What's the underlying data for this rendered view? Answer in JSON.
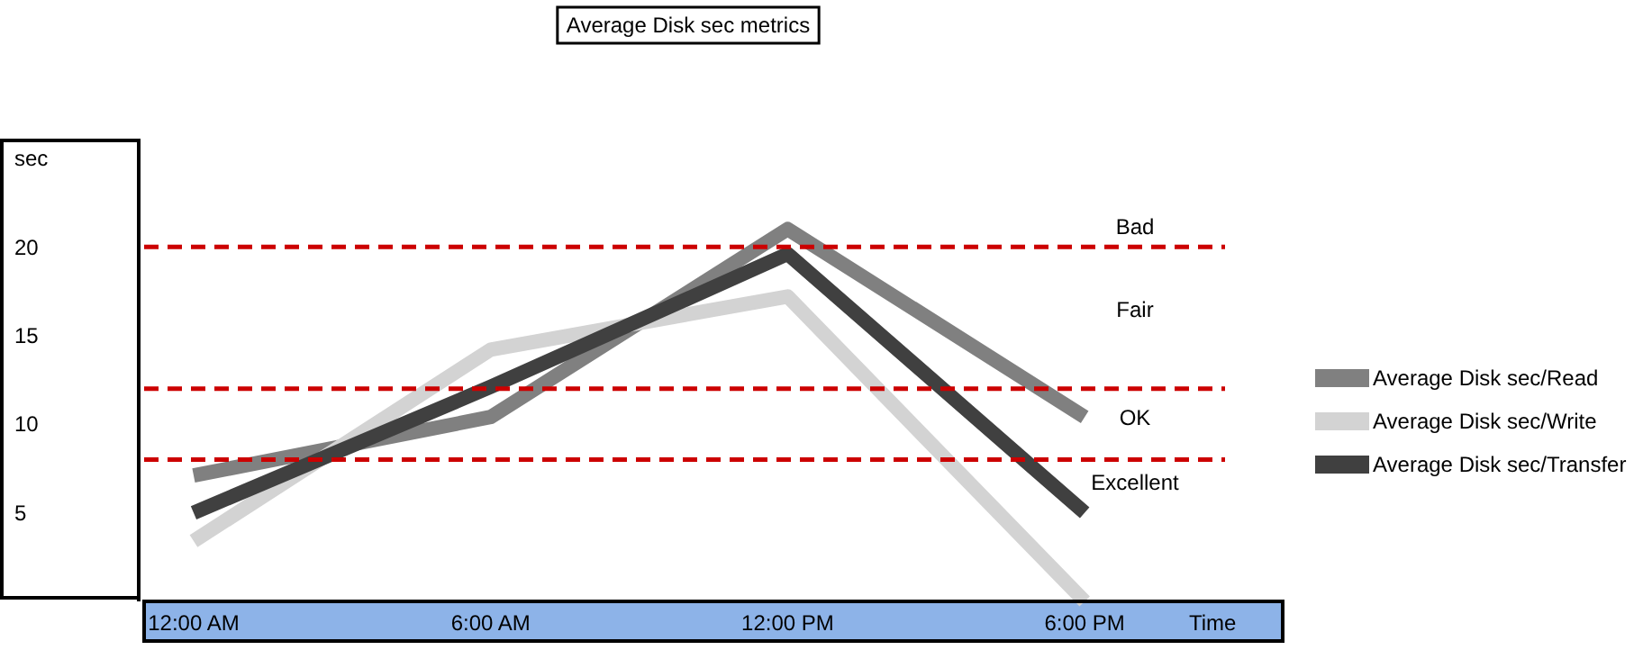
{
  "chart_data": {
    "type": "line",
    "title": "Average Disk sec metrics",
    "ylabel": "sec",
    "xlabel": "Time",
    "x": [
      0,
      6,
      12,
      18
    ],
    "xlim": [
      -1,
      22
    ],
    "xticks": [
      {
        "value": 0,
        "label": "12:00 AM"
      },
      {
        "value": 6,
        "label": "6:00 AM"
      },
      {
        "value": 12,
        "label": "12:00 PM"
      },
      {
        "value": 18,
        "label": "6:00 PM"
      }
    ],
    "ylim": [
      0,
      26
    ],
    "yticks": [
      5,
      10,
      15,
      20
    ],
    "series": [
      {
        "name": "Average Disk sec/Read",
        "color": "#808080",
        "values": [
          7.1,
          10.4,
          21,
          10.4
        ]
      },
      {
        "name": "Average Disk sec/Write",
        "color": "#d3d3d3",
        "values": [
          3.4,
          14.2,
          17.2,
          0
        ]
      },
      {
        "name": "Average Disk sec/Transfer",
        "color": "#404040",
        "values": [
          5,
          12.1,
          19.6,
          5
        ]
      }
    ],
    "ref_lines": [
      {
        "axis": "y",
        "value": 20,
        "color": "#cc0000",
        "line_style": "dashed"
      },
      {
        "axis": "y",
        "value": 12,
        "color": "#cc0000",
        "line_style": "dashed"
      },
      {
        "axis": "y",
        "value": 8,
        "color": "#cc0000",
        "line_style": "dashed"
      }
    ],
    "annotations": [
      "Bad",
      "Fair",
      "OK",
      "Excellent"
    ],
    "legend": "right",
    "grid": false,
    "marker": "none",
    "line_style": "solid"
  }
}
